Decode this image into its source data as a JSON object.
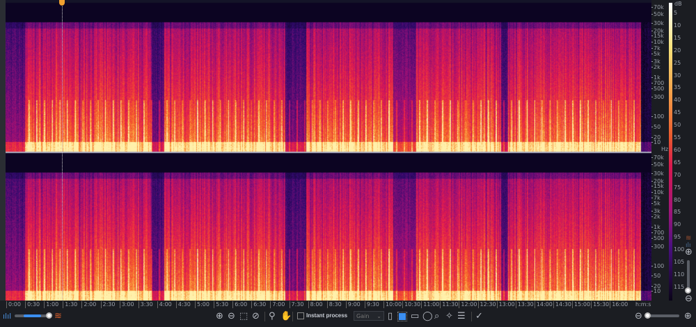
{
  "freq_labels": [
    "70k",
    "50k",
    "30k",
    "20k",
    "15k",
    "10k",
    "7k",
    "5k",
    "3k",
    "2k",
    "1k",
    "700",
    "500",
    "300",
    "100",
    "50",
    "20",
    "10"
  ],
  "freq_unit": "Hz",
  "db_unit": "dB",
  "db_labels": [
    "5",
    "10",
    "15",
    "20",
    "25",
    "30",
    "35",
    "40",
    "45",
    "50",
    "55",
    "60",
    "65",
    "70",
    "75",
    "80",
    "85",
    "90",
    "95",
    "100",
    "105",
    "110",
    "115"
  ],
  "time_labels": [
    "0:00",
    "0:30",
    "1:00",
    "1:30",
    "2:00",
    "2:30",
    "3:00",
    "3:30",
    "4:00",
    "4:30",
    "5:00",
    "5:30",
    "6:00",
    "6:30",
    "7:00",
    "7:30",
    "8:00",
    "8:30",
    "9:00",
    "9:30",
    "10:00",
    "10:30",
    "11:00",
    "11:30",
    "12:00",
    "12:30",
    "13:00",
    "13:30",
    "14:00",
    "14:30",
    "15:00",
    "15:30",
    "16:00"
  ],
  "time_unit": "h:m:s",
  "toolbar": {
    "instant_process_label": "Instant process",
    "instant_process_checked": false,
    "module_select": "Gain"
  },
  "opacity_slider": 0.75,
  "horizontal_zoom": 0.0,
  "vertical_zoom": 0.0,
  "colors": {
    "accent": "#3b8ef0",
    "playhead_marker": "#f0a030"
  }
}
